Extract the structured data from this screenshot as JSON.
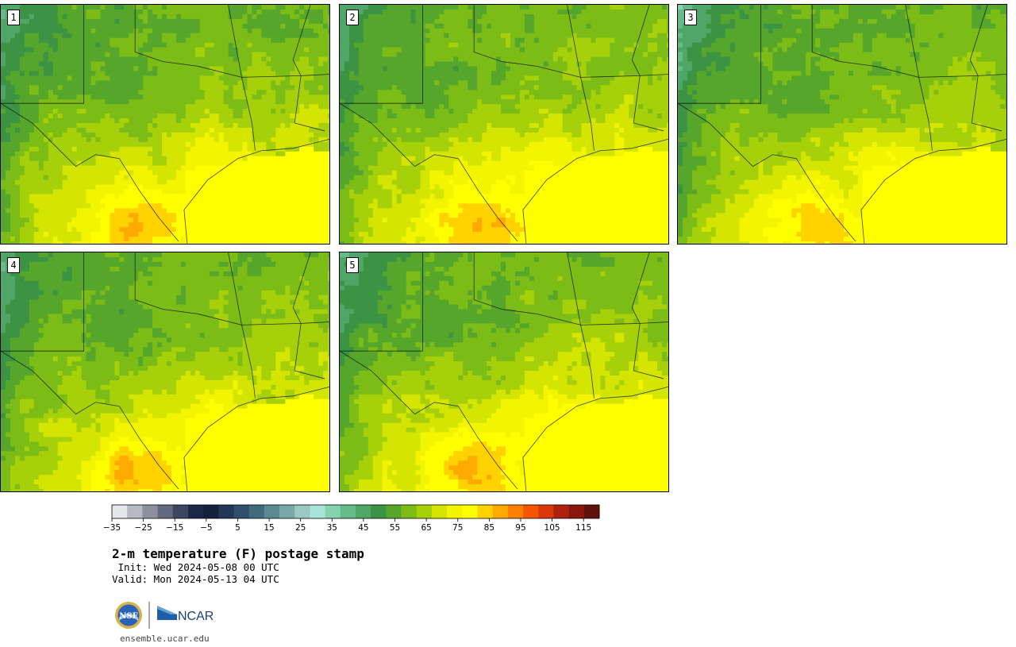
{
  "title": "2-m temperature (F) postage stamp",
  "init": " Init: Wed 2024-05-08 00 UTC",
  "valid": "Valid: Mon 2024-05-13 04 UTC",
  "panels": [
    {
      "label": "1"
    },
    {
      "label": "2"
    },
    {
      "label": "3"
    },
    {
      "label": "4"
    },
    {
      "label": "5"
    }
  ],
  "colorbar": {
    "min": -35,
    "max": 120,
    "step": 5,
    "tick_labels": [
      "−35",
      "−25",
      "−15",
      "−5",
      "5",
      "15",
      "25",
      "35",
      "45",
      "55",
      "65",
      "75",
      "85",
      "95",
      "105",
      "115"
    ],
    "colors": [
      "#e6e7ea",
      "#b8bac3",
      "#8d909f",
      "#636a80",
      "#3d4660",
      "#1c2845",
      "#14213a",
      "#203756",
      "#2f4e69",
      "#416b7c",
      "#5a8a90",
      "#78a9a8",
      "#9ac8c3",
      "#a8e5d8",
      "#86d2b0",
      "#66bb8a",
      "#4fa666",
      "#3c9343",
      "#56a62c",
      "#7cbc16",
      "#a6d00a",
      "#d3e500",
      "#f3f500",
      "#ffff00",
      "#ffd200",
      "#ffaa00",
      "#ff7f00",
      "#f45500",
      "#d8380a",
      "#b0200e",
      "#8a160e",
      "#60130c"
    ]
  },
  "footer": {
    "nsf_logo_text": "NSF",
    "ncar_logo_text": "NCAR",
    "url": "ensemble.ucar.edu"
  }
}
